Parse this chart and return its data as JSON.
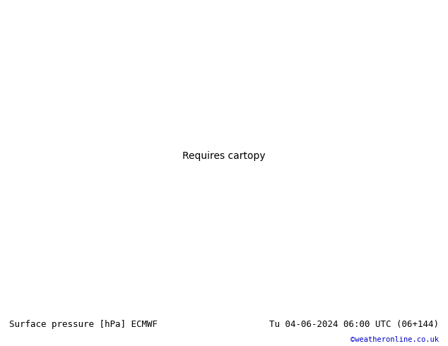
{
  "title_left": "Surface pressure [hPa] ECMWF",
  "title_right": "Tu 04-06-2024 06:00 UTC (06+144)",
  "credit": "©weatheronline.co.uk",
  "background_color": "#d8d8d8",
  "land_color": "#c8f0a0",
  "coast_color": "#808080",
  "figsize": [
    6.34,
    4.9
  ],
  "dpi": 100,
  "bottom_bar_color": "#f0f0f0",
  "title_fontsize": 9,
  "credit_color": "#0000cc",
  "lon_min": -12,
  "lon_max": 12,
  "lat_min": 46,
  "lat_max": 62,
  "blue_isobar_color": "#0000ff",
  "black_isobar_color": "#000000",
  "red_isobar_color": "#ff0000",
  "isobar_linewidth": 1.5
}
